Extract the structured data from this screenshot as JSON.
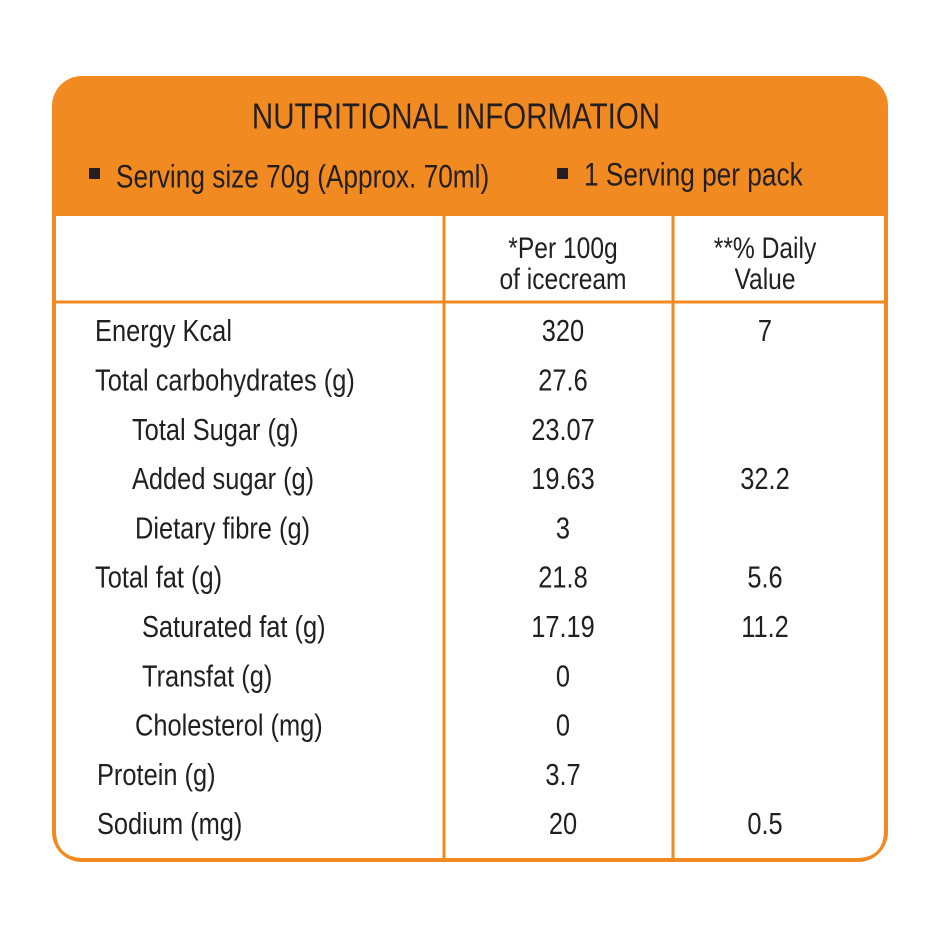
{
  "header": {
    "title": "NUTRITIONAL INFORMATION",
    "serving": [
      "Serving size 70g  (Approx. 70ml)",
      "1 Serving per pack"
    ]
  },
  "table": {
    "columns": [
      [
        "*Per 100g",
        "of icecream"
      ],
      [
        "**% Daily",
        "Value"
      ]
    ],
    "rows": [
      [
        "Energy Kcal",
        "320",
        "7"
      ],
      [
        "Total carbohydrates (g)",
        "27.6",
        null
      ],
      [
        "Total Sugar (g)",
        "23.07",
        null
      ],
      [
        "Added sugar (g)",
        "19.63",
        "32.2"
      ],
      [
        "Dietary fibre (g)",
        "3",
        null
      ],
      [
        "Total fat (g)",
        "21.8",
        "5.6"
      ],
      [
        "Saturated fat (g)",
        "17.19",
        "11.2"
      ],
      [
        "Transfat (g)",
        "0",
        null
      ],
      [
        "Cholesterol (mg)",
        "0",
        null
      ],
      [
        "Protein (g)",
        "3.7",
        null
      ],
      [
        "Sodium (mg)",
        "20",
        "0.5"
      ]
    ]
  }
}
